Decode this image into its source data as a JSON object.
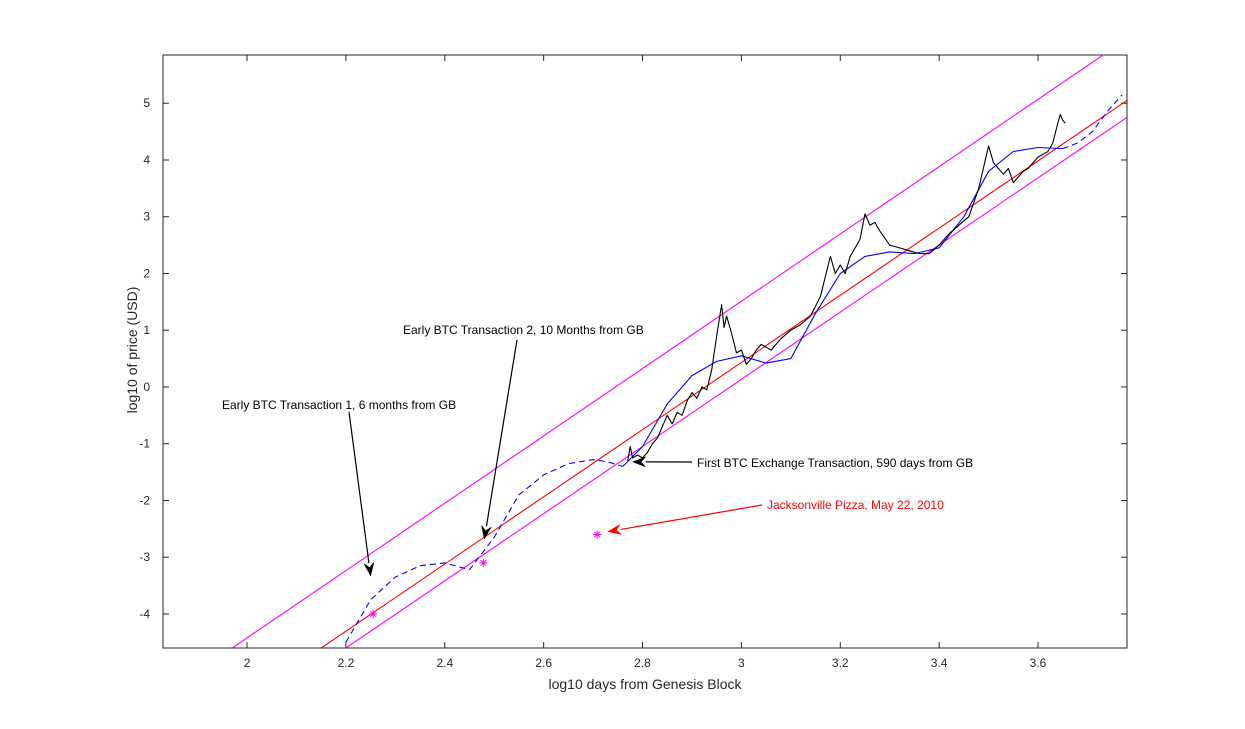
{
  "chart_data": {
    "type": "line",
    "title": "",
    "xlabel": "log10 days from Genesis Block",
    "ylabel": "log10 of price (USD)",
    "xlim": [
      1.83,
      3.78
    ],
    "ylim": [
      -4.6,
      5.85
    ],
    "xticks": [
      2,
      2.2,
      2.4,
      2.6,
      2.8,
      3,
      3.2,
      3.4,
      3.6
    ],
    "yticks": [
      -4,
      -3,
      -2,
      -1,
      0,
      1,
      2,
      3,
      4,
      5
    ],
    "grid": false,
    "legend": "none",
    "colors": {
      "price": "#000000",
      "fit": "#ff0000",
      "bands": "#ff00ff",
      "model": "#0000ff",
      "points": "#ff00ff",
      "pizza_annotation": "#ff0000",
      "annotation": "#000000"
    },
    "series": [
      {
        "id": "upper_band",
        "style": "solid",
        "x": [
          1.97,
          3.74
        ],
        "y": [
          -4.6,
          5.9
        ]
      },
      {
        "id": "lower_band",
        "style": "solid",
        "x": [
          2.2,
          3.78
        ],
        "y": [
          -4.6,
          4.75
        ]
      },
      {
        "id": "regression",
        "style": "solid",
        "x": [
          2.15,
          3.78
        ],
        "y": [
          -4.6,
          5.05
        ]
      },
      {
        "id": "model_dashed_early",
        "style": "dashed",
        "x": [
          2.2,
          2.22,
          2.25,
          2.3,
          2.35,
          2.4,
          2.45,
          2.5,
          2.55,
          2.6,
          2.65,
          2.7,
          2.73,
          2.76
        ],
        "y": [
          -4.5,
          -4.2,
          -3.75,
          -3.35,
          -3.15,
          -3.1,
          -3.22,
          -2.65,
          -1.9,
          -1.55,
          -1.35,
          -1.28,
          -1.32,
          -1.4
        ]
      },
      {
        "id": "model_solid",
        "style": "solid",
        "x": [
          2.76,
          2.8,
          2.85,
          2.9,
          2.95,
          3.0,
          3.05,
          3.1,
          3.15,
          3.2,
          3.25,
          3.3,
          3.35,
          3.4,
          3.45,
          3.5,
          3.55,
          3.6,
          3.65
        ],
        "y": [
          -1.4,
          -1.05,
          -0.3,
          0.2,
          0.45,
          0.55,
          0.42,
          0.5,
          1.3,
          2.0,
          2.3,
          2.38,
          2.35,
          2.45,
          3.0,
          3.8,
          4.15,
          4.22,
          4.2
        ]
      },
      {
        "id": "model_dashed_late",
        "style": "dashed",
        "x": [
          3.65,
          3.68,
          3.71,
          3.74,
          3.77
        ],
        "y": [
          4.2,
          4.3,
          4.5,
          4.85,
          5.15
        ]
      },
      {
        "id": "price",
        "style": "solid",
        "x": [
          2.77,
          2.775,
          2.78,
          2.79,
          2.8,
          2.81,
          2.82,
          2.83,
          2.84,
          2.85,
          2.86,
          2.87,
          2.88,
          2.89,
          2.9,
          2.91,
          2.92,
          2.93,
          2.94,
          2.95,
          2.96,
          2.965,
          2.97,
          2.98,
          2.99,
          3.0,
          3.01,
          3.02,
          3.03,
          3.04,
          3.05,
          3.06,
          3.07,
          3.08,
          3.1,
          3.12,
          3.14,
          3.16,
          3.18,
          3.19,
          3.2,
          3.21,
          3.22,
          3.23,
          3.24,
          3.25,
          3.26,
          3.27,
          3.28,
          3.3,
          3.32,
          3.34,
          3.36,
          3.38,
          3.4,
          3.42,
          3.44,
          3.46,
          3.48,
          3.5,
          3.51,
          3.52,
          3.53,
          3.54,
          3.55,
          3.56,
          3.57,
          3.58,
          3.59,
          3.6,
          3.61,
          3.62,
          3.63,
          3.64,
          3.645,
          3.65,
          3.655
        ],
        "y": [
          -1.3,
          -1.05,
          -1.25,
          -1.2,
          -1.25,
          -1.15,
          -1.0,
          -0.9,
          -0.7,
          -0.5,
          -0.65,
          -0.45,
          -0.5,
          -0.25,
          -0.1,
          -0.2,
          0.0,
          -0.05,
          0.3,
          0.9,
          1.45,
          1.05,
          1.25,
          0.95,
          0.6,
          0.65,
          0.4,
          0.5,
          0.65,
          0.75,
          0.7,
          0.65,
          0.75,
          0.85,
          1.0,
          1.1,
          1.25,
          1.6,
          2.3,
          2.0,
          2.15,
          2.0,
          2.3,
          2.45,
          2.6,
          3.05,
          2.85,
          2.9,
          2.75,
          2.5,
          2.45,
          2.4,
          2.35,
          2.35,
          2.5,
          2.7,
          2.85,
          3.0,
          3.5,
          4.25,
          3.95,
          3.85,
          3.75,
          3.85,
          3.6,
          3.7,
          3.8,
          3.85,
          3.95,
          4.05,
          4.1,
          4.15,
          4.3,
          4.65,
          4.8,
          4.7,
          4.65
        ]
      }
    ],
    "points": [
      {
        "x": 2.255,
        "y": -4.0
      },
      {
        "x": 2.478,
        "y": -3.1
      },
      {
        "x": 2.708,
        "y": -2.6
      }
    ],
    "annotations": [
      {
        "text": "Early BTC Transaction 1, 6 months from GB",
        "color": "black",
        "target": {
          "x": 2.25,
          "y": -3.33
        }
      },
      {
        "text": "Early BTC Transaction 2, 10 Months from GB",
        "color": "black",
        "target": {
          "x": 2.48,
          "y": -2.68
        }
      },
      {
        "text": "First BTC Exchange Transaction, 590 days  from GB",
        "color": "black",
        "target": {
          "x": 2.78,
          "y": -1.32
        }
      },
      {
        "text": "Jacksonville Pizza, May 22, 2010",
        "color": "red",
        "target": {
          "x": 2.73,
          "y": -2.55
        }
      }
    ]
  }
}
